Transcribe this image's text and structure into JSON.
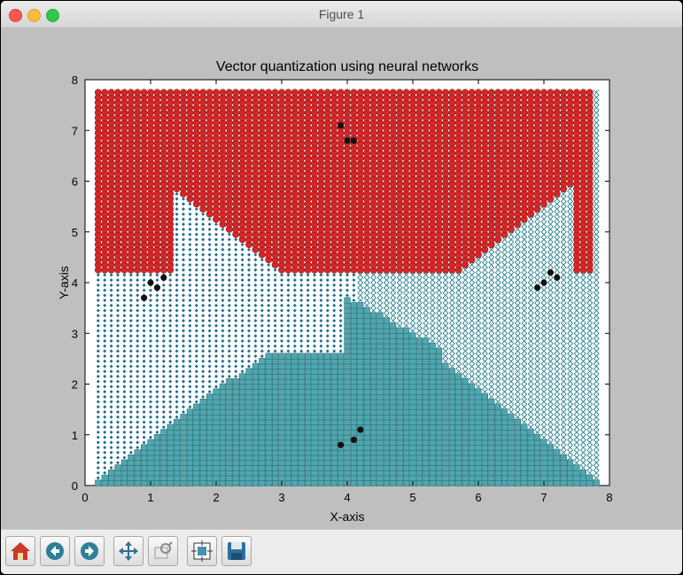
{
  "window": {
    "title": "Figure 1"
  },
  "toolbar": {
    "icons": [
      "home-icon",
      "back-icon",
      "forward-icon",
      "pan-icon",
      "zoom-icon",
      "subplots-icon",
      "save-icon"
    ]
  },
  "chart_data": {
    "type": "scatter",
    "title": "Vector quantization using neural networks",
    "xlabel": "X-axis",
    "ylabel": "Y-axis",
    "xlim": [
      0,
      8
    ],
    "ylim": [
      0,
      8
    ],
    "x_ticks": [
      "0",
      "1",
      "2",
      "3",
      "4",
      "5",
      "6",
      "7",
      "8"
    ],
    "y_ticks": [
      "0",
      "1",
      "2",
      "3",
      "4",
      "5",
      "6",
      "7",
      "8"
    ],
    "grid": false,
    "regions": [
      {
        "marker": "circle",
        "color": "#d62728"
      },
      {
        "marker": "diamond",
        "color": "#1f6e8c"
      },
      {
        "marker": "x",
        "color": "#3a8a96"
      },
      {
        "marker": "square",
        "color": "#4fa7b0"
      }
    ],
    "series": [
      {
        "marker": "point",
        "color": "#111111",
        "points": [
          [
            0.9,
            3.7
          ],
          [
            1.0,
            4.0
          ],
          [
            1.1,
            3.9
          ],
          [
            1.2,
            4.1
          ],
          [
            3.9,
            7.1
          ],
          [
            4.0,
            6.8
          ],
          [
            4.1,
            6.8
          ],
          [
            6.9,
            3.9
          ],
          [
            7.0,
            4.0
          ],
          [
            7.1,
            4.2
          ],
          [
            7.2,
            4.1
          ],
          [
            3.9,
            0.8
          ],
          [
            4.1,
            0.9
          ],
          [
            4.2,
            1.1
          ]
        ]
      }
    ]
  }
}
